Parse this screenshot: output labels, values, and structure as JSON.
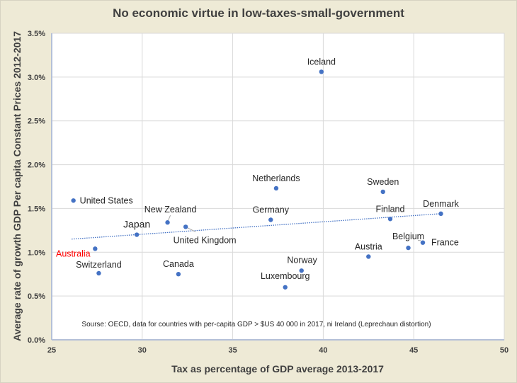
{
  "chart_data": {
    "type": "scatter",
    "title": "No economic virtue in low-taxes-small-government",
    "xlabel": "Tax as percentage of GDP average 2013-2017",
    "ylabel": "Average rate of growth GDP Per capita Constant Prices 2012-2017",
    "xlim": [
      25,
      50
    ],
    "ylim": [
      0.0,
      3.5
    ],
    "x_ticks": [
      25,
      30,
      35,
      40,
      45,
      50
    ],
    "x_tick_labels": [
      "25",
      "30",
      "35",
      "40",
      "45",
      "50"
    ],
    "y_ticks": [
      0.0,
      0.5,
      1.0,
      1.5,
      2.0,
      2.5,
      3.0,
      3.5
    ],
    "y_tick_labels": [
      "0.0%",
      "0.5%",
      "1.0%",
      "1.5%",
      "2.0%",
      "2.5%",
      "3.0%",
      "3.5%"
    ],
    "grid": true,
    "marker_color": "#4472c4",
    "highlight_color": "#ff0000",
    "points": [
      {
        "label": "United States",
        "x": 26.2,
        "y": 1.59,
        "label_pos": "right"
      },
      {
        "label": "Australia",
        "x": 27.4,
        "y": 1.04,
        "label_pos": "below-left",
        "highlight": true
      },
      {
        "label": "Switzerland",
        "x": 27.6,
        "y": 0.76,
        "label_pos": "above"
      },
      {
        "label": "Japan",
        "x": 29.7,
        "y": 1.2,
        "label_pos": "above-left",
        "big": true
      },
      {
        "label": "New Zealand",
        "x": 31.4,
        "y": 1.34,
        "label_pos": "above-leader"
      },
      {
        "label": "United Kingdom",
        "x": 32.4,
        "y": 1.29,
        "label_pos": "below-leader"
      },
      {
        "label": "Canada",
        "x": 32.0,
        "y": 0.75,
        "label_pos": "above"
      },
      {
        "label": "Germany",
        "x": 37.1,
        "y": 1.37,
        "label_pos": "above"
      },
      {
        "label": "Netherlands",
        "x": 37.4,
        "y": 1.73,
        "label_pos": "above"
      },
      {
        "label": "Iceland",
        "x": 39.9,
        "y": 3.06,
        "label_pos": "above"
      },
      {
        "label": "Norway",
        "x": 38.8,
        "y": 0.79,
        "label_pos": "above-right"
      },
      {
        "label": "Luxembourg",
        "x": 37.9,
        "y": 0.6,
        "label_pos": "above"
      },
      {
        "label": "Austria",
        "x": 42.5,
        "y": 0.95,
        "label_pos": "above"
      },
      {
        "label": "Sweden",
        "x": 43.3,
        "y": 1.69,
        "label_pos": "above"
      },
      {
        "label": "Finland",
        "x": 43.7,
        "y": 1.38,
        "label_pos": "above"
      },
      {
        "label": "Belgium",
        "x": 44.7,
        "y": 1.05,
        "label_pos": "above"
      },
      {
        "label": "France",
        "x": 45.5,
        "y": 1.11,
        "label_pos": "right-leader"
      },
      {
        "label": "Denmark",
        "x": 46.5,
        "y": 1.44,
        "label_pos": "above"
      }
    ],
    "trendline": {
      "type": "linear",
      "style": "dotted",
      "color": "#4472c4",
      "from": {
        "x": 26.1,
        "y": 1.15
      },
      "to": {
        "x": 46.5,
        "y": 1.44
      }
    },
    "annotation": "Sourse: OECD, data for countries with per-capita GDP > $US 40 000 in 2017, ni Ireland (Leprechaun distortion)"
  }
}
